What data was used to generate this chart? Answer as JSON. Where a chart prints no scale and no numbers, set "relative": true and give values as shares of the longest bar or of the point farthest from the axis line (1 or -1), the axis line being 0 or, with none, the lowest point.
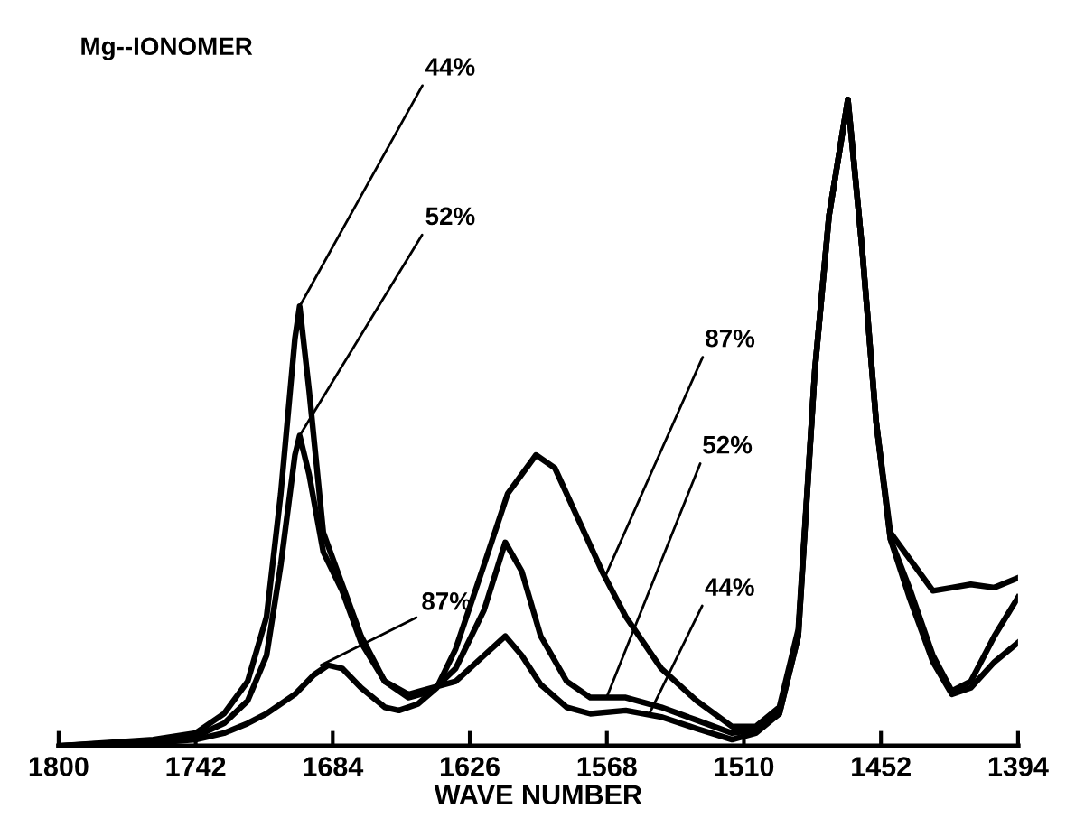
{
  "chart_data": {
    "type": "line",
    "title": "Mg--IONOMER",
    "xlabel": "WAVE NUMBER",
    "relative": true,
    "xlim": [
      1800,
      1394
    ],
    "xticks": [
      1800,
      1742,
      1684,
      1626,
      1568,
      1510,
      1452,
      1394
    ],
    "grid": false,
    "legend": false,
    "marker": "none",
    "line_style": "solid",
    "series": [
      {
        "color": "#000000",
        "x": [
          1800,
          1760,
          1742,
          1730,
          1720,
          1712,
          1706,
          1700,
          1698,
          1694,
          1688,
          1680,
          1672,
          1662,
          1652,
          1642,
          1632,
          1620,
          1611,
          1604,
          1596,
          1585,
          1575,
          1560,
          1545,
          1530,
          1515,
          1505,
          1495,
          1487,
          1480,
          1474,
          1466,
          1460,
          1454,
          1448,
          1440,
          1430,
          1422,
          1414,
          1404,
          1394
        ],
        "values": [
          0,
          0.01,
          0.02,
          0.05,
          0.1,
          0.2,
          0.39,
          0.63,
          0.68,
          0.55,
          0.33,
          0.25,
          0.17,
          0.1,
          0.08,
          0.09,
          0.1,
          0.14,
          0.17,
          0.14,
          0.095,
          0.06,
          0.05,
          0.055,
          0.045,
          0.027,
          0.01,
          0.02,
          0.05,
          0.17,
          0.58,
          0.82,
          1.0,
          0.77,
          0.5,
          0.32,
          0.245,
          0.14,
          0.085,
          0.1,
          0.17,
          0.23
        ]
      },
      {
        "color": "#000000",
        "x": [
          1800,
          1760,
          1742,
          1730,
          1720,
          1712,
          1706,
          1700,
          1698,
          1694,
          1688,
          1680,
          1672,
          1662,
          1652,
          1642,
          1632,
          1620,
          1611,
          1604,
          1596,
          1585,
          1575,
          1560,
          1545,
          1530,
          1515,
          1505,
          1495,
          1487,
          1480,
          1474,
          1466,
          1460,
          1454,
          1448,
          1440,
          1430,
          1422,
          1414,
          1404,
          1394
        ],
        "values": [
          0,
          0.008,
          0.015,
          0.035,
          0.07,
          0.14,
          0.28,
          0.45,
          0.48,
          0.42,
          0.3,
          0.24,
          0.16,
          0.1,
          0.075,
          0.085,
          0.12,
          0.21,
          0.315,
          0.27,
          0.17,
          0.1,
          0.075,
          0.075,
          0.06,
          0.04,
          0.02,
          0.025,
          0.05,
          0.17,
          0.58,
          0.82,
          1.0,
          0.77,
          0.5,
          0.32,
          0.23,
          0.13,
          0.08,
          0.09,
          0.13,
          0.16
        ]
      },
      {
        "color": "#000000",
        "x": [
          1800,
          1760,
          1742,
          1730,
          1720,
          1712,
          1700,
          1692,
          1686,
          1680,
          1672,
          1662,
          1656,
          1648,
          1640,
          1632,
          1620,
          1610,
          1598,
          1590,
          1580,
          1570,
          1560,
          1545,
          1530,
          1515,
          1505,
          1495,
          1487,
          1480,
          1474,
          1466,
          1460,
          1454,
          1448,
          1440,
          1430,
          1422,
          1414,
          1404,
          1394
        ],
        "values": [
          0,
          0.005,
          0.01,
          0.02,
          0.035,
          0.05,
          0.08,
          0.11,
          0.125,
          0.12,
          0.09,
          0.06,
          0.055,
          0.065,
          0.09,
          0.15,
          0.28,
          0.39,
          0.45,
          0.43,
          0.35,
          0.27,
          0.2,
          0.12,
          0.07,
          0.03,
          0.03,
          0.06,
          0.18,
          0.58,
          0.82,
          1.0,
          0.77,
          0.5,
          0.33,
          0.29,
          0.24,
          0.245,
          0.25,
          0.245,
          0.26
        ]
      }
    ],
    "annotations": [
      {
        "text": "44%",
        "x": 1698,
        "y": 0.68
      },
      {
        "text": "52%",
        "x": 1698,
        "y": 0.48
      },
      {
        "text": "87%",
        "x": 1689,
        "y": 0.125
      },
      {
        "text": "87%",
        "x": 1569,
        "y": 0.26
      },
      {
        "text": "52%",
        "x": 1568,
        "y": 0.076
      },
      {
        "text": "44%",
        "x": 1550,
        "y": 0.05
      }
    ]
  }
}
